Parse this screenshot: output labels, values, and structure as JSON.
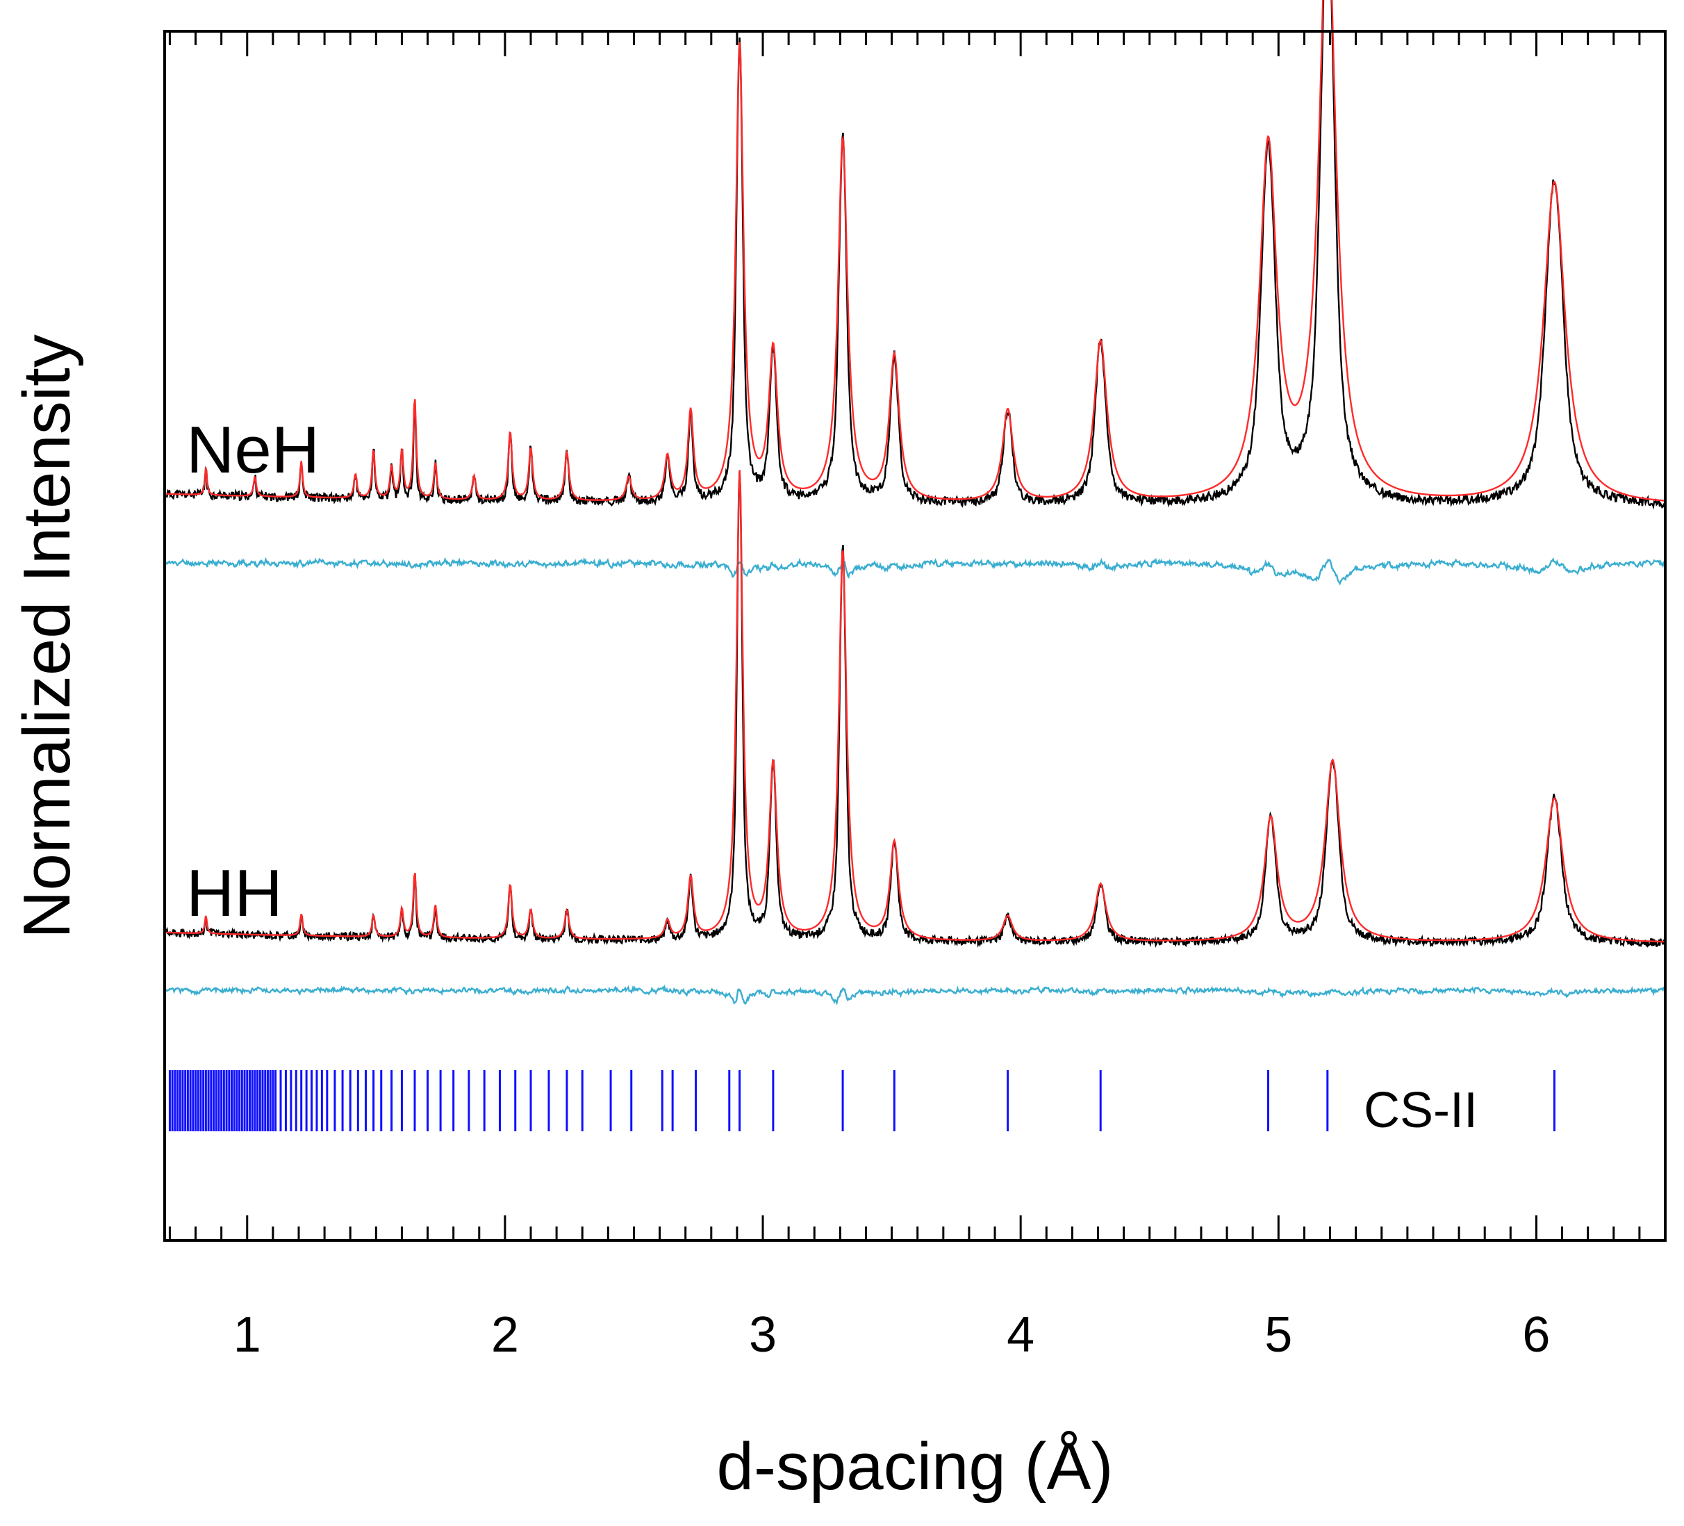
{
  "chart_data": {
    "type": "line",
    "title": "",
    "xlabel": "d-spacing (Å)",
    "ylabel": "Normalized Intensity",
    "xlim": [
      0.68,
      6.5
    ],
    "xticks": [
      1,
      2,
      3,
      4,
      5,
      6
    ],
    "xtick_labels": [
      "1",
      "2",
      "3",
      "4",
      "5",
      "6"
    ],
    "minor_tick_step": 0.1,
    "grid": false,
    "legend": "none",
    "units": "arbitrary normalized intensity; traces vertically offset",
    "colors": {
      "observed": "#000000",
      "calculated": "#ff2a2a",
      "difference": "#3aaed0",
      "reflections": "#1010ff",
      "frame": "#000000"
    },
    "patterns": [
      {
        "label": "NeH",
        "baseline": 0,
        "peaks": [
          {
            "d": 0.84,
            "height": 0.07,
            "width": 0.005
          },
          {
            "d": 1.03,
            "height": 0.05,
            "width": 0.006
          },
          {
            "d": 1.21,
            "height": 0.09,
            "width": 0.006
          },
          {
            "d": 1.42,
            "height": 0.06,
            "width": 0.007
          },
          {
            "d": 1.49,
            "height": 0.12,
            "width": 0.007
          },
          {
            "d": 1.56,
            "height": 0.08,
            "width": 0.007
          },
          {
            "d": 1.6,
            "height": 0.12,
            "width": 0.007
          },
          {
            "d": 1.65,
            "height": 0.25,
            "width": 0.007
          },
          {
            "d": 1.73,
            "height": 0.09,
            "width": 0.007
          },
          {
            "d": 1.88,
            "height": 0.06,
            "width": 0.008
          },
          {
            "d": 2.02,
            "height": 0.17,
            "width": 0.009
          },
          {
            "d": 2.1,
            "height": 0.13,
            "width": 0.009
          },
          {
            "d": 2.24,
            "height": 0.12,
            "width": 0.01
          },
          {
            "d": 2.48,
            "height": 0.06,
            "width": 0.012
          },
          {
            "d": 2.63,
            "height": 0.11,
            "width": 0.013
          },
          {
            "d": 2.72,
            "height": 0.22,
            "width": 0.013
          },
          {
            "d": 2.91,
            "height": 1.13,
            "width": 0.018
          },
          {
            "d": 3.04,
            "height": 0.37,
            "width": 0.02
          },
          {
            "d": 3.31,
            "height": 0.9,
            "width": 0.022
          },
          {
            "d": 3.51,
            "height": 0.36,
            "width": 0.023
          },
          {
            "d": 3.95,
            "height": 0.23,
            "width": 0.025
          },
          {
            "d": 4.31,
            "height": 0.4,
            "width": 0.03
          },
          {
            "d": 4.96,
            "height": 0.87,
            "width": 0.04
          },
          {
            "d": 5.19,
            "height": 1.46,
            "width": 0.04
          },
          {
            "d": 6.07,
            "height": 0.8,
            "width": 0.05
          }
        ]
      },
      {
        "label": "HH",
        "baseline": 0,
        "peaks": [
          {
            "d": 0.84,
            "height": 0.05,
            "width": 0.005
          },
          {
            "d": 1.21,
            "height": 0.06,
            "width": 0.006
          },
          {
            "d": 1.49,
            "height": 0.06,
            "width": 0.007
          },
          {
            "d": 1.6,
            "height": 0.08,
            "width": 0.007
          },
          {
            "d": 1.65,
            "height": 0.18,
            "width": 0.007
          },
          {
            "d": 1.73,
            "height": 0.09,
            "width": 0.007
          },
          {
            "d": 2.02,
            "height": 0.15,
            "width": 0.009
          },
          {
            "d": 2.1,
            "height": 0.08,
            "width": 0.009
          },
          {
            "d": 2.24,
            "height": 0.08,
            "width": 0.01
          },
          {
            "d": 2.63,
            "height": 0.05,
            "width": 0.012
          },
          {
            "d": 2.72,
            "height": 0.17,
            "width": 0.013
          },
          {
            "d": 2.91,
            "height": 1.29,
            "width": 0.015
          },
          {
            "d": 3.04,
            "height": 0.48,
            "width": 0.018
          },
          {
            "d": 3.31,
            "height": 1.08,
            "width": 0.018
          },
          {
            "d": 3.51,
            "height": 0.27,
            "width": 0.02
          },
          {
            "d": 3.95,
            "height": 0.07,
            "width": 0.022
          },
          {
            "d": 4.31,
            "height": 0.16,
            "width": 0.025
          },
          {
            "d": 4.97,
            "height": 0.34,
            "width": 0.03
          },
          {
            "d": 5.21,
            "height": 0.5,
            "width": 0.035
          },
          {
            "d": 6.07,
            "height": 0.4,
            "width": 0.04
          }
        ]
      }
    ],
    "reflections": {
      "label": "CS-II",
      "positions": [
        0.7,
        0.71,
        0.72,
        0.73,
        0.74,
        0.75,
        0.76,
        0.77,
        0.78,
        0.79,
        0.8,
        0.81,
        0.82,
        0.83,
        0.84,
        0.85,
        0.86,
        0.87,
        0.88,
        0.89,
        0.9,
        0.91,
        0.92,
        0.93,
        0.94,
        0.95,
        0.96,
        0.97,
        0.98,
        0.99,
        1.0,
        1.01,
        1.02,
        1.03,
        1.04,
        1.05,
        1.06,
        1.07,
        1.08,
        1.09,
        1.1,
        1.11,
        1.13,
        1.15,
        1.17,
        1.19,
        1.21,
        1.23,
        1.25,
        1.27,
        1.29,
        1.31,
        1.34,
        1.37,
        1.4,
        1.43,
        1.46,
        1.49,
        1.52,
        1.56,
        1.6,
        1.65,
        1.7,
        1.75,
        1.8,
        1.86,
        1.92,
        1.98,
        2.04,
        2.1,
        2.17,
        2.24,
        2.3,
        2.41,
        2.49,
        2.61,
        2.65,
        2.74,
        2.87,
        2.91,
        3.04,
        3.31,
        3.51,
        3.95,
        4.31,
        4.96,
        5.19,
        6.07
      ]
    }
  }
}
